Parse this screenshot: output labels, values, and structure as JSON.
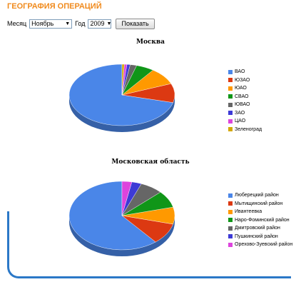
{
  "header": {
    "title": "ГЕОГРАФИЯ ОПЕРАЦИЙ"
  },
  "filters": {
    "month_label": "Месяц",
    "month_value": "Ноябрь",
    "year_label": "Год",
    "year_value": "2009",
    "show_button": "Показать"
  },
  "chart_data": [
    {
      "type": "pie",
      "title": "Москва",
      "legend_position": "right",
      "categories": [
        "ВАО",
        "ЮЗАО",
        "ЮАО",
        "СВАО",
        "ЮВАО",
        "ЗАО",
        "ЦАО",
        "Зеленоград"
      ],
      "values": [
        71,
        10,
        9,
        5.5,
        2,
        1,
        0.8,
        0.7
      ],
      "colors": [
        "#4a86e8",
        "#dc3912",
        "#ff9900",
        "#109618",
        "#666666",
        "#3d3ad6",
        "#dd44dd",
        "#d4a800"
      ]
    },
    {
      "type": "pie",
      "title": "Московская область",
      "legend_position": "right",
      "categories": [
        "Люберецкий район",
        "Мытищинский район",
        "Ивантеевка",
        "Наро-Фоминский район",
        "Дмитровский район",
        "Пушкинский район",
        "Орехово-Зуевский район"
      ],
      "values": [
        61,
        10,
        8,
        8,
        7,
        3,
        3
      ],
      "colors": [
        "#4a86e8",
        "#dc3912",
        "#ff9900",
        "#109618",
        "#666666",
        "#3d3ad6",
        "#dd44dd"
      ]
    }
  ]
}
